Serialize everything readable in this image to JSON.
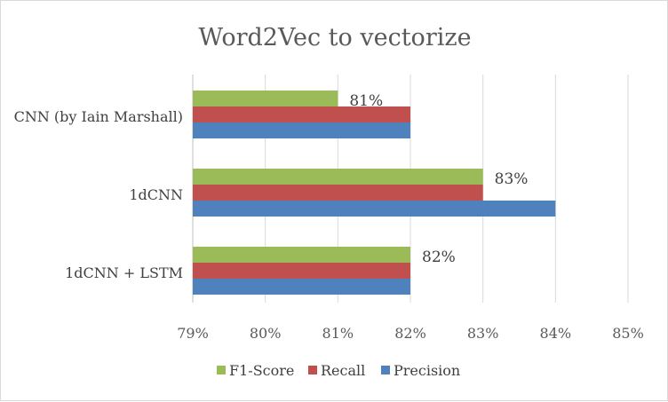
{
  "chart_data": {
    "type": "bar",
    "orientation": "horizontal",
    "title": "Word2Vec to vectorize",
    "categories": [
      "CNN (by Iain Marshall)",
      "1dCNN",
      "1dCNN + LSTM"
    ],
    "series": [
      {
        "name": "F1-Score",
        "color": "#9bbb59",
        "values": [
          81,
          83,
          82
        ],
        "labels": [
          "81%",
          "83%",
          "82%"
        ]
      },
      {
        "name": "Recall",
        "color": "#c0504d",
        "values": [
          82,
          83,
          82
        ]
      },
      {
        "name": "Precision",
        "color": "#4f81bd",
        "values": [
          82,
          84,
          82
        ]
      }
    ],
    "xlim": [
      79,
      85
    ],
    "xticks": [
      "79%",
      "80%",
      "81%",
      "82%",
      "83%",
      "84%",
      "85%"
    ],
    "grid": true,
    "legend": "bottom"
  }
}
